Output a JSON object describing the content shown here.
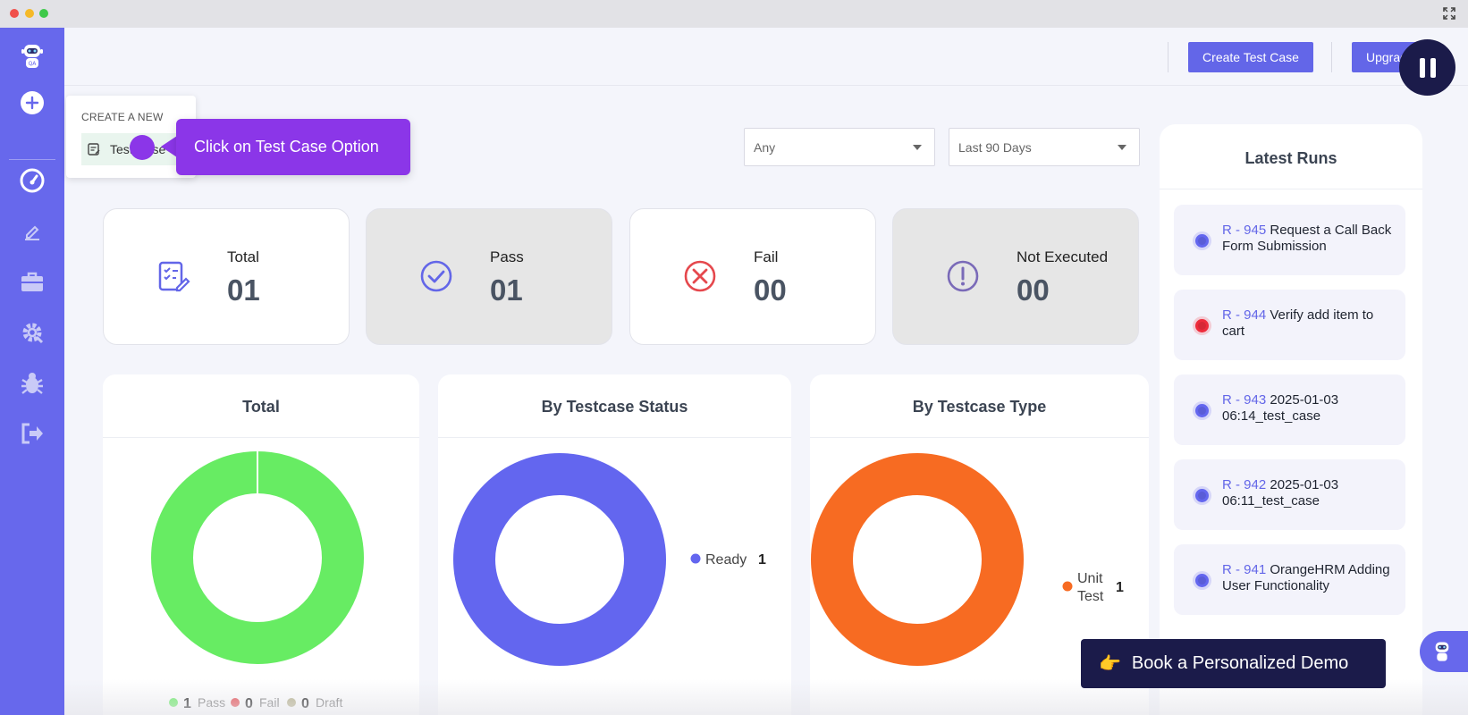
{
  "topbar": {
    "create_test_case": "Create Test Case",
    "upgrade": "Upgrade"
  },
  "sidebar": {
    "items": [
      "bot-logo-icon",
      "add-circle-icon",
      "dashboard-gauge-icon",
      "pencil-icon",
      "briefcase-icon",
      "settings-gear-icon",
      "bug-icon",
      "logout-icon"
    ]
  },
  "popover": {
    "title": "CREATE A NEW",
    "item": "Test Case"
  },
  "tooltip": {
    "text": "Click on Test Case Option"
  },
  "filters": {
    "status": "Any",
    "period": "Last 90 Days"
  },
  "stats": [
    {
      "label": "Total",
      "value": "01",
      "icon": "edit-list-icon"
    },
    {
      "label": "Pass",
      "value": "01",
      "icon": "check-circle-icon"
    },
    {
      "label": "Fail",
      "value": "00",
      "icon": "x-circle-icon"
    },
    {
      "label": "Not Executed",
      "value": "00",
      "icon": "exclamation-circle-icon"
    }
  ],
  "charts": {
    "total_title": "Total",
    "status_title": "By Testcase Status",
    "type_title": "By Testcase Type",
    "total_legend": [
      {
        "count": "1",
        "label": "Pass"
      },
      {
        "count": "0",
        "label": "Fail"
      },
      {
        "count": "0",
        "label": "Draft"
      }
    ],
    "status_legend": {
      "label": "Ready",
      "count": "1"
    },
    "type_legend": {
      "label_line1": "Unit",
      "label_line2": "Test",
      "count": "1"
    }
  },
  "chart_data": [
    {
      "type": "pie",
      "title": "Total",
      "categories": [
        "Pass",
        "Fail",
        "Draft"
      ],
      "values": [
        1,
        0,
        0
      ],
      "colors": [
        "#67ec63",
        "#e5484d",
        "#b5b08a"
      ]
    },
    {
      "type": "pie",
      "title": "By Testcase Status",
      "categories": [
        "Ready"
      ],
      "values": [
        1
      ],
      "colors": [
        "#6366ef"
      ]
    },
    {
      "type": "pie",
      "title": "By Testcase Type",
      "categories": [
        "Unit Test"
      ],
      "values": [
        1
      ],
      "colors": [
        "#f76b22"
      ]
    }
  ],
  "latest_runs": {
    "title": "Latest Runs",
    "items": [
      {
        "id": "R - 945",
        "name": "Request a Call Back Form Submission",
        "status_color": "#6366ef"
      },
      {
        "id": "R - 944",
        "name": "Verify add item to cart",
        "status_color": "#ee2b3b"
      },
      {
        "id": "R - 943",
        "name": "2025-01-03 06:14_test_case",
        "status_color": "#6366ef"
      },
      {
        "id": "R - 942",
        "name": "2025-01-03 06:11_test_case",
        "status_color": "#6366ef"
      },
      {
        "id": "R - 941",
        "name": "OrangeHRM Adding User Functionality",
        "status_color": "#6366ef"
      }
    ]
  },
  "demo": {
    "label": "Book a Personalized Demo",
    "emoji": "👉"
  },
  "colors": {
    "sidebar": "#6768ec",
    "primary": "#6366e8",
    "tooltip": "#8b36e8",
    "dark": "#1b1b4a"
  }
}
